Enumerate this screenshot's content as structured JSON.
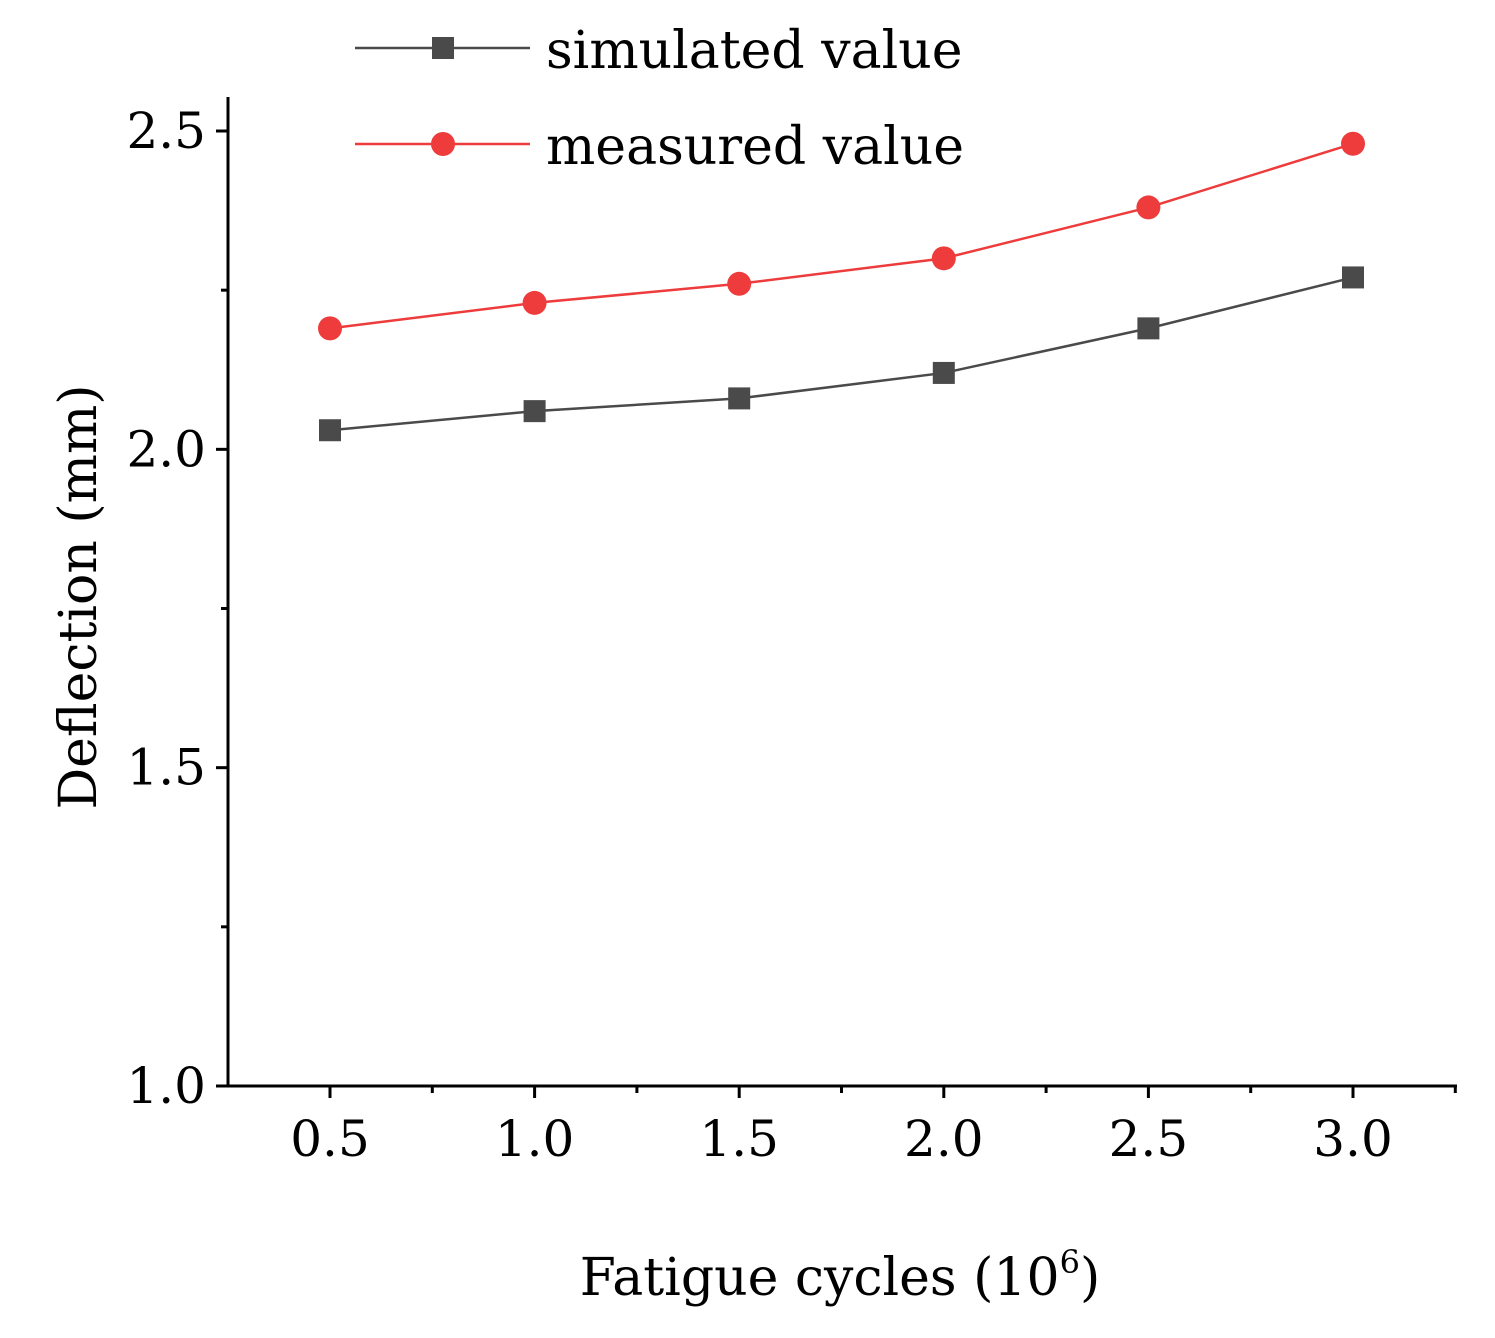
{
  "chart_data": {
    "type": "line",
    "title": "",
    "xlabel": "Fatigue cycles (10",
    "xlabel_sup": "6",
    "xlabel_close": ")",
    "ylabel": "Deflection (mm)",
    "xlim": [
      0.25,
      3.25
    ],
    "ylim": [
      1.0,
      2.55
    ],
    "x": [
      0.5,
      1.0,
      1.5,
      2.0,
      2.5,
      3.0
    ],
    "x_tick_labels": [
      "0.5",
      "1.0",
      "1.5",
      "2.0",
      "2.5",
      "3.0"
    ],
    "y_ticks": [
      1.0,
      1.5,
      2.0,
      2.5
    ],
    "y_tick_labels": [
      "1.0",
      "1.5",
      "2.0",
      "2.5"
    ],
    "legend_position": "top-left",
    "series": [
      {
        "name": "simulated value",
        "marker": "square",
        "color": "#4a4a4a",
        "values": [
          2.03,
          2.06,
          2.08,
          2.12,
          2.19,
          2.27
        ]
      },
      {
        "name": "measured value",
        "marker": "circle",
        "color": "#ee3b3b",
        "values": [
          2.19,
          2.23,
          2.26,
          2.3,
          2.38,
          2.48
        ]
      }
    ]
  }
}
